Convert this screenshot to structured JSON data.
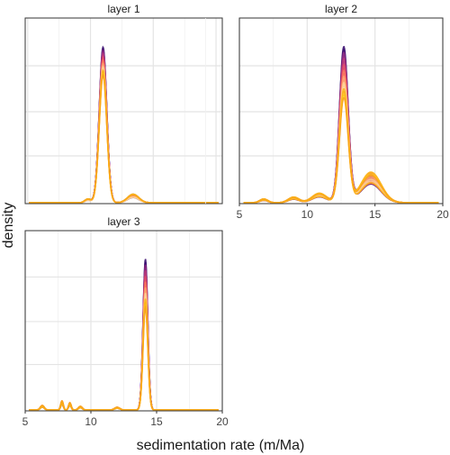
{
  "figure": {
    "xlabel": "sedimentation rate (m/Ma)",
    "ylabel": "density"
  },
  "chart_data": [
    {
      "type": "line",
      "title": "layer 1",
      "xlim": [
        4.8,
        20.5
      ],
      "ylim": [
        0,
        1.05
      ],
      "xticks": [
        5,
        10,
        15,
        20
      ],
      "xtick_labels_shown": false,
      "grid": true,
      "legend": "none",
      "series_palette": [
        "#3b0f70",
        "#8c2981",
        "#b73779",
        "#de4968",
        "#f7705c",
        "#fe9f6d",
        "#fecf92",
        "#fcb519",
        "#ffc21a",
        "#f8a51a"
      ],
      "peaks": [
        {
          "x": 11.0,
          "height": 1.0,
          "sd": 0.3
        },
        {
          "x": 13.4,
          "height": 0.045,
          "sd": 0.45
        },
        {
          "x": 9.8,
          "height": 0.02,
          "sd": 0.25
        }
      ],
      "peak_variation": {
        "min_scale": 0.82,
        "max_scale": 1.0
      }
    },
    {
      "type": "line",
      "title": "layer 2",
      "xlim": [
        5,
        20
      ],
      "ylim": [
        0,
        1.05
      ],
      "xticks": [
        5,
        10,
        15,
        20
      ],
      "xtick_labels": [
        "5",
        "10",
        "15",
        "20"
      ],
      "grid": true,
      "legend": "none",
      "series_palette": [
        "#3b0f70",
        "#8c2981",
        "#b73779",
        "#de4968",
        "#f7705c",
        "#fe9f6d",
        "#fecf92",
        "#fcb519",
        "#ffc21a",
        "#f8a51a"
      ],
      "peaks": [
        {
          "x": 12.7,
          "height": 1.0,
          "sd": 0.32
        },
        {
          "x": 14.7,
          "height": 0.16,
          "sd": 0.75
        },
        {
          "x": 10.9,
          "height": 0.05,
          "sd": 0.55
        },
        {
          "x": 9.0,
          "height": 0.03,
          "sd": 0.4
        },
        {
          "x": 6.8,
          "height": 0.02,
          "sd": 0.3
        }
      ],
      "peak_variation": {
        "min_scale": 0.67,
        "max_scale": 1.0
      }
    },
    {
      "type": "line",
      "title": "layer 3",
      "xlim": [
        5,
        20
      ],
      "ylim": [
        0,
        1.05
      ],
      "xticks": [
        5,
        10,
        15,
        20
      ],
      "xtick_labels": [
        "5",
        "10",
        "15",
        "20"
      ],
      "grid": true,
      "legend": "none",
      "series_palette": [
        "#3b0f70",
        "#8c2981",
        "#b73779",
        "#de4968",
        "#f7705c",
        "#fe9f6d",
        "#fecf92",
        "#fcb519",
        "#ffc21a",
        "#f8a51a"
      ],
      "peaks": [
        {
          "x": 14.15,
          "height": 1.0,
          "sd": 0.18
        },
        {
          "x": 7.8,
          "height": 0.05,
          "sd": 0.1
        },
        {
          "x": 8.4,
          "height": 0.04,
          "sd": 0.1
        },
        {
          "x": 6.3,
          "height": 0.025,
          "sd": 0.15
        },
        {
          "x": 9.2,
          "height": 0.02,
          "sd": 0.15
        },
        {
          "x": 12.0,
          "height": 0.015,
          "sd": 0.2
        }
      ],
      "peak_variation": {
        "min_scale": 0.68,
        "max_scale": 1.0
      }
    }
  ]
}
